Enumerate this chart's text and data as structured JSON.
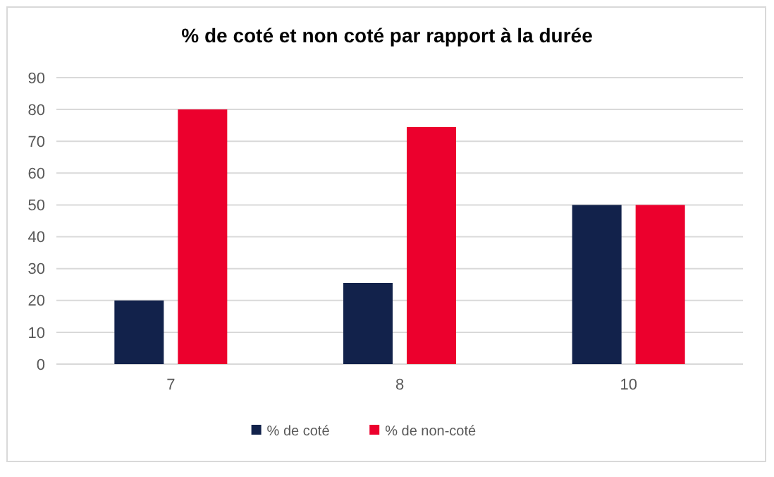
{
  "chart_data": {
    "type": "bar",
    "title": "% de coté et non coté  par rapport à la durée",
    "categories": [
      "7",
      "8",
      "10"
    ],
    "series": [
      {
        "name": "% de coté",
        "color": "#12224b",
        "values": [
          20,
          25.5,
          50
        ]
      },
      {
        "name": "% de non-coté",
        "color": "#ec002d",
        "values": [
          80,
          74.5,
          50
        ]
      }
    ],
    "ylim": [
      0,
      90
    ],
    "yticks": [
      0,
      10,
      20,
      30,
      40,
      50,
      60,
      70,
      80,
      90
    ],
    "grid": "y",
    "legend": "bottom"
  }
}
